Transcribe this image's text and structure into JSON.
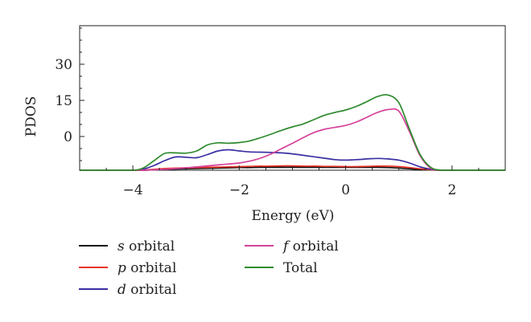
{
  "chart_data": {
    "type": "line",
    "title": "",
    "xlabel": "Energy (eV)",
    "ylabel": "PDOS",
    "xlim": [
      -5,
      3
    ],
    "ylim": [
      -14,
      46
    ],
    "x_ticks": [
      -4,
      -2,
      0,
      2
    ],
    "x_tick_labels": [
      "−4",
      "−2",
      "0",
      "2"
    ],
    "y_ticks": [
      0,
      15,
      30
    ],
    "y_tick_labels": [
      "0",
      "15",
      "30"
    ],
    "y_tick_positions": [
      0,
      15,
      30
    ],
    "grid": false,
    "legend_position": "bottom",
    "x": [
      -5,
      -4.5,
      -4,
      -3.8,
      -3.6,
      -3.4,
      -3.2,
      -3,
      -2.8,
      -2.6,
      -2.4,
      -2.2,
      -2,
      -1.8,
      -1.6,
      -1.4,
      -1.2,
      -1,
      -0.8,
      -0.6,
      -0.4,
      -0.2,
      0,
      0.2,
      0.4,
      0.6,
      0.8,
      1,
      1.2,
      1.4,
      1.6,
      1.8,
      2,
      2.5,
      3
    ],
    "series": [
      {
        "name": "s orbital",
        "name_prefix": "s",
        "name_suffix": " orbital",
        "color": "#111111",
        "values": [
          -14,
          -14,
          -14,
          -14,
          -13.8,
          -13.6,
          -13.5,
          -13.4,
          -13.3,
          -13.2,
          -13.1,
          -13,
          -12.9,
          -12.9,
          -12.8,
          -12.8,
          -12.8,
          -12.8,
          -12.8,
          -12.8,
          -12.8,
          -12.8,
          -12.8,
          -12.8,
          -12.8,
          -12.8,
          -12.9,
          -13.1,
          -13.4,
          -13.7,
          -13.9,
          -14,
          -14,
          -14,
          -14
        ]
      },
      {
        "name": "p orbital",
        "name_prefix": "p",
        "name_suffix": " orbital",
        "color": "#e8342a",
        "values": [
          -14,
          -14,
          -14,
          -13.9,
          -13.6,
          -13.3,
          -13.1,
          -13,
          -12.9,
          -12.8,
          -12.7,
          -12.6,
          -12.5,
          -12.4,
          -12.3,
          -12.3,
          -12.2,
          -12.2,
          -12.3,
          -12.3,
          -12.4,
          -12.4,
          -12.5,
          -12.5,
          -12.4,
          -12.3,
          -12.3,
          -12.5,
          -12.9,
          -13.4,
          -13.8,
          -14,
          -14,
          -14,
          -14
        ]
      },
      {
        "name": "d orbital",
        "name_prefix": "d",
        "name_suffix": " orbital",
        "color": "#3b2fa3",
        "values": [
          -14,
          -14,
          -14,
          -13.5,
          -12,
          -10,
          -8.5,
          -8.6,
          -8.8,
          -7.5,
          -6,
          -5.5,
          -6,
          -6.4,
          -6.5,
          -6.6,
          -6.8,
          -7.2,
          -7.8,
          -8.4,
          -9,
          -9.6,
          -9.8,
          -9.6,
          -9.3,
          -9.1,
          -9.3,
          -9.8,
          -11,
          -12.6,
          -13.6,
          -14,
          -14,
          -14,
          -14
        ]
      },
      {
        "name": "f orbital",
        "name_prefix": "f",
        "name_suffix": " orbital",
        "color": "#d6419a",
        "values": [
          -14,
          -14,
          -14,
          -14,
          -13.8,
          -13.6,
          -13.3,
          -13,
          -12.6,
          -12.2,
          -11.8,
          -11.4,
          -11,
          -10.2,
          -9,
          -7.2,
          -5,
          -2.8,
          -0.5,
          1.6,
          3,
          3.8,
          4.6,
          6,
          8,
          10,
          11.2,
          10.5,
          2,
          -8,
          -13.2,
          -14,
          -14,
          -14,
          -14
        ]
      },
      {
        "name": "Total",
        "name_prefix": "",
        "name_suffix": "Total",
        "color": "#2e8b2e",
        "values": [
          -14,
          -14,
          -14,
          -13,
          -10,
          -7,
          -6.8,
          -6.9,
          -6,
          -3.5,
          -2.6,
          -2.8,
          -2.5,
          -1.8,
          -0.5,
          1,
          2.6,
          4,
          5.2,
          7,
          8.8,
          10,
          11,
          12.5,
          14.5,
          16.6,
          17.2,
          14,
          3,
          -7.5,
          -12.8,
          -14,
          -14,
          -14,
          -14
        ]
      }
    ]
  }
}
